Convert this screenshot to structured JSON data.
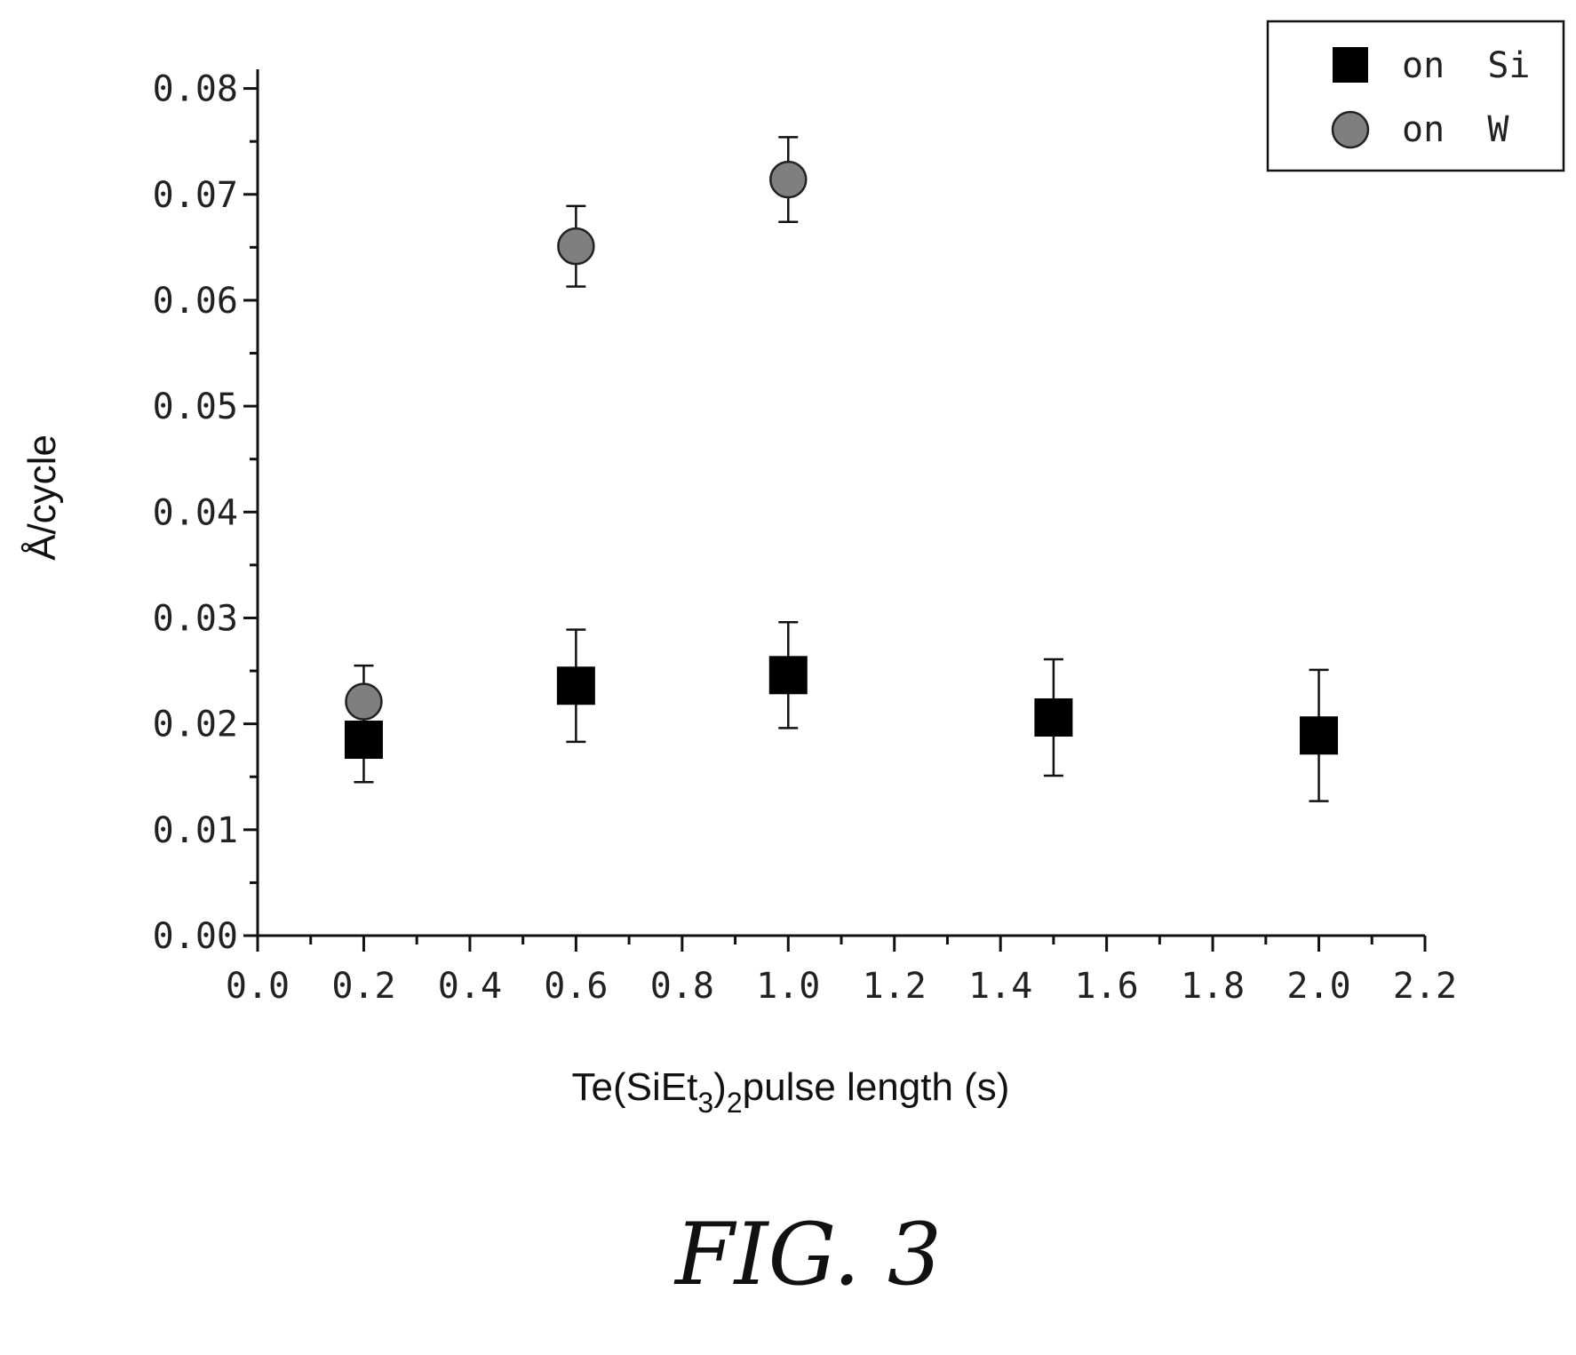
{
  "chart_data": {
    "type": "scatter",
    "ylabel": "Å/cycle",
    "xlabel": {
      "prefix": "Te(SiEt",
      "sub1": "3",
      "mid": ")",
      "sub2": "2",
      "suffix": "pulse length (s)"
    },
    "xlim": [
      0.0,
      2.2
    ],
    "ylim": [
      0.0,
      0.085
    ],
    "x_ticks": [
      "0.0",
      "0.2",
      "0.4",
      "0.6",
      "0.8",
      "1.0",
      "1.2",
      "1.4",
      "1.6",
      "1.8",
      "2.0",
      "2.2"
    ],
    "y_ticks": [
      "0.00",
      "0.01",
      "0.02",
      "0.03",
      "0.04",
      "0.05",
      "0.06",
      "0.07",
      "0.08"
    ],
    "grid": false,
    "legend_position": "top-right",
    "series": [
      {
        "name": "on  Si",
        "marker": "square",
        "color": "#000000",
        "points": [
          {
            "x": 0.2,
            "y": 0.0185,
            "err": 0.004
          },
          {
            "x": 0.6,
            "y": 0.0236,
            "err": 0.0053
          },
          {
            "x": 1.0,
            "y": 0.0246,
            "err": 0.005
          },
          {
            "x": 1.5,
            "y": 0.0206,
            "err": 0.0055
          },
          {
            "x": 2.0,
            "y": 0.0189,
            "err": 0.0062
          }
        ]
      },
      {
        "name": "on  W",
        "marker": "circle",
        "color": "#7f7f7f",
        "points": [
          {
            "x": 0.2,
            "y": 0.0221,
            "err": 0.0034
          },
          {
            "x": 0.6,
            "y": 0.0651,
            "err": 0.0038
          },
          {
            "x": 1.0,
            "y": 0.0714,
            "err": 0.004
          }
        ]
      }
    ]
  },
  "caption": "FIG. 3"
}
